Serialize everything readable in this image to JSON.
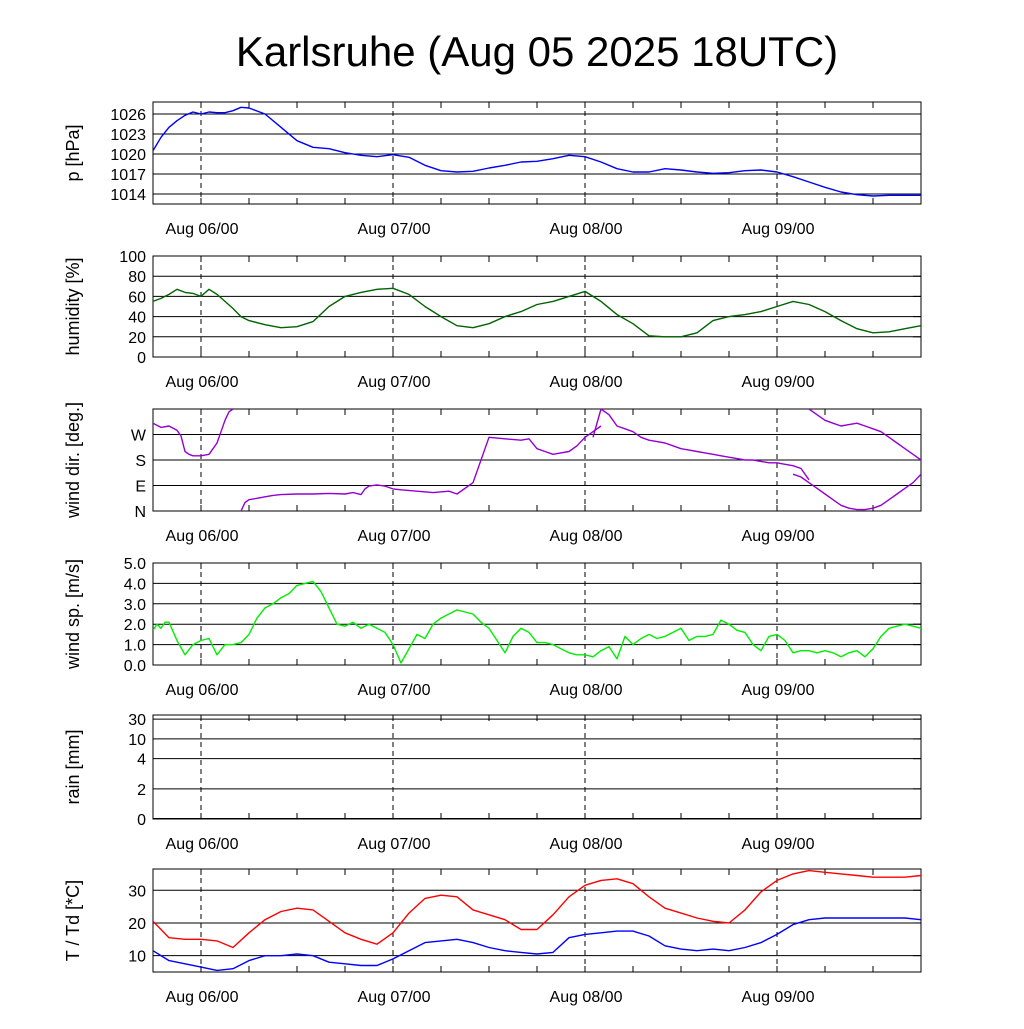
{
  "title": "Karlsruhe (Aug 05 2025 18UTC)",
  "x_tick_labels": [
    "Aug 06/00",
    "Aug 07/00",
    "Aug 08/00",
    "Aug 09/00"
  ],
  "chart_data": [
    {
      "type": "line",
      "ylabel": "p [hPa]",
      "yticks": [
        1014,
        1017,
        1020,
        1023,
        1026
      ],
      "ylim": [
        1012.5,
        1027.8
      ],
      "x_unit": "hours since Aug 05 18UTC",
      "xlim": [
        0,
        96
      ],
      "grid": "horizontal lines at y ticks, dashed verticals at day boundaries",
      "series": [
        {
          "color": "#0000ff",
          "x": [
            0,
            0.5,
            1,
            2,
            3,
            4,
            5,
            6,
            7,
            8,
            9,
            10,
            11,
            12,
            14,
            16,
            18,
            20,
            22,
            24,
            26,
            28,
            30,
            32,
            34,
            36,
            38,
            40,
            42,
            44,
            46,
            48,
            50,
            52,
            54,
            56,
            58,
            60,
            62,
            64,
            66,
            68,
            70,
            72,
            74,
            76,
            78,
            80,
            82,
            84,
            86,
            88,
            90,
            92,
            94,
            96
          ],
          "values": [
            1020.5,
            1021.5,
            1022.5,
            1024,
            1025,
            1025.8,
            1026.3,
            1026,
            1026.3,
            1026.2,
            1026.2,
            1026.5,
            1027,
            1026.9,
            1026,
            1024,
            1022,
            1021,
            1020.8,
            1020.2,
            1019.8,
            1019.6,
            1019.9,
            1019.5,
            1018.3,
            1017.5,
            1017.3,
            1017.4,
            1017.9,
            1018.3,
            1018.8,
            1018.9,
            1019.3,
            1019.8,
            1019.6,
            1018.8,
            1017.8,
            1017.3,
            1017.3,
            1017.8,
            1017.6,
            1017.3,
            1017.1,
            1017.2,
            1017.5,
            1017.6,
            1017.3,
            1016.6,
            1015.8,
            1015,
            1014.3,
            1013.9,
            1013.7,
            1013.8,
            1013.8,
            1013.8
          ]
        }
      ]
    },
    {
      "type": "line",
      "ylabel": "humidity [%]",
      "yticks": [
        0,
        20,
        40,
        60,
        80,
        100
      ],
      "ylim": [
        0,
        100
      ],
      "x_unit": "hours since Aug 05 18UTC",
      "xlim": [
        0,
        96
      ],
      "series": [
        {
          "color": "#006400",
          "x": [
            0,
            1,
            2,
            3,
            4,
            5,
            6,
            7,
            8,
            9,
            10,
            11,
            12,
            14,
            16,
            18,
            20,
            22,
            24,
            26,
            28,
            30,
            32,
            34,
            36,
            38,
            40,
            42,
            44,
            46,
            48,
            50,
            52,
            54,
            56,
            58,
            60,
            62,
            64,
            66,
            68,
            70,
            72,
            74,
            76,
            78,
            80,
            82,
            84,
            86,
            88,
            90,
            92,
            94,
            96
          ],
          "values": [
            55,
            58,
            62,
            67,
            64,
            63,
            60,
            67,
            62,
            55,
            48,
            40,
            36,
            32,
            29,
            30,
            35,
            50,
            60,
            64,
            67,
            68,
            62,
            50,
            40,
            31,
            29,
            33,
            40,
            45,
            52,
            55,
            60,
            65,
            55,
            42,
            33,
            21,
            20,
            20,
            24,
            36,
            40,
            42,
            45,
            50,
            55,
            52,
            45,
            36,
            28,
            24,
            25,
            28,
            31
          ]
        }
      ]
    },
    {
      "type": "scatter",
      "ylabel": "wind dir. [deg.]",
      "ytick_labels": [
        "N",
        "E",
        "S",
        "W"
      ],
      "yticks": [
        0,
        90,
        180,
        270
      ],
      "ylim": [
        0,
        360
      ],
      "x_unit": "hours since Aug 05 18UTC",
      "xlim": [
        0,
        96
      ],
      "series": [
        {
          "color": "#9400d3",
          "x": [
            0,
            1,
            2,
            3,
            3.5,
            4,
            4.5,
            5,
            6,
            7,
            8,
            8.5,
            9,
            9.5,
            10
          ],
          "values": [
            310,
            295,
            300,
            285,
            265,
            210,
            200,
            195,
            195,
            200,
            240,
            280,
            320,
            350,
            360
          ]
        },
        {
          "color": "#9400d3",
          "x": [
            11,
            11.5,
            12,
            13,
            14,
            15,
            16,
            18,
            20,
            22,
            24,
            25,
            26,
            26.5,
            27,
            28,
            29,
            30,
            31,
            33,
            35,
            37,
            38,
            40,
            42,
            44,
            46,
            47,
            48,
            49,
            50,
            52,
            53,
            54,
            55,
            56
          ],
          "values": [
            0,
            30,
            40,
            45,
            50,
            55,
            58,
            60,
            60,
            62,
            60,
            65,
            58,
            78,
            88,
            92,
            88,
            78,
            75,
            70,
            65,
            70,
            60,
            100,
            260,
            255,
            250,
            255,
            220,
            210,
            200,
            210,
            230,
            260,
            280,
            300
          ]
        },
        {
          "color": "#9400d3",
          "x": [
            55,
            56,
            57,
            58,
            59,
            60,
            61,
            62,
            63,
            64,
            65,
            66,
            67,
            68,
            69,
            70,
            71,
            72,
            73,
            74,
            75,
            76,
            77,
            78,
            79,
            80,
            81,
            82
          ],
          "values": [
            260,
            360,
            340,
            300,
            290,
            280,
            260,
            250,
            245,
            240,
            230,
            220,
            215,
            210,
            205,
            200,
            195,
            190,
            185,
            180,
            180,
            175,
            170,
            170,
            165,
            160,
            150,
            110
          ]
        },
        {
          "color": "#9400d3",
          "x": [
            80,
            81,
            82,
            83,
            84,
            85,
            86,
            87,
            88,
            89,
            90,
            91,
            92,
            93,
            94,
            95,
            96
          ],
          "values": [
            130,
            120,
            100,
            80,
            60,
            40,
            20,
            10,
            5,
            5,
            10,
            20,
            40,
            60,
            80,
            100,
            130
          ]
        },
        {
          "color": "#9400d3",
          "x": [
            82,
            83,
            84,
            85,
            86,
            87,
            88,
            89,
            90,
            91,
            92,
            93,
            94,
            95,
            96
          ],
          "values": [
            360,
            340,
            320,
            310,
            300,
            305,
            310,
            300,
            290,
            280,
            260,
            240,
            220,
            200,
            180
          ]
        }
      ]
    },
    {
      "type": "line",
      "ylabel": "wind sp. [m/s]",
      "yticks": [
        0.0,
        1.0,
        2.0,
        3.0,
        4.0,
        5.0
      ],
      "ytick_labels": [
        "0.0",
        "1.0",
        "2.0",
        "3.0",
        "4.0",
        "5.0"
      ],
      "ylim": [
        0,
        5
      ],
      "x_unit": "hours since Aug 05 18UTC",
      "xlim": [
        0,
        96
      ],
      "series": [
        {
          "color": "#00ee00",
          "x": [
            0,
            0.5,
            1,
            1.5,
            2,
            3,
            4,
            5,
            6,
            7,
            8,
            9,
            10,
            11,
            12,
            13,
            14,
            15,
            16,
            17,
            18,
            19,
            20,
            21,
            22,
            23,
            24,
            25,
            26,
            27,
            28,
            29,
            30,
            31,
            32,
            33,
            34,
            35,
            36,
            37,
            38,
            39,
            40,
            41,
            42,
            43,
            44,
            45,
            46,
            47,
            48,
            49,
            50,
            51,
            52,
            53,
            54,
            55,
            56,
            57,
            58,
            59,
            60,
            61,
            62,
            63,
            64,
            65,
            66,
            67,
            68,
            69,
            70,
            71,
            72,
            73,
            74,
            75,
            76,
            77,
            78,
            79,
            80,
            81,
            82,
            83,
            84,
            85,
            86,
            87,
            88,
            89,
            90,
            91,
            92,
            93,
            94,
            95,
            96
          ],
          "values": [
            1.7,
            2.0,
            1.8,
            2.1,
            2.1,
            1.2,
            0.5,
            1.0,
            1.2,
            1.3,
            0.5,
            1.0,
            1.0,
            1.1,
            1.5,
            2.3,
            2.8,
            3.0,
            3.3,
            3.5,
            3.9,
            4.0,
            4.1,
            3.6,
            2.8,
            2.0,
            1.9,
            2.1,
            1.8,
            2.0,
            1.8,
            1.6,
            1.0,
            0.1,
            0.8,
            1.5,
            1.3,
            2.0,
            2.3,
            2.5,
            2.7,
            2.6,
            2.5,
            2.1,
            1.8,
            1.2,
            0.6,
            1.4,
            1.8,
            1.6,
            1.1,
            1.1,
            1.0,
            0.8,
            0.6,
            0.5,
            0.5,
            0.4,
            0.7,
            0.9,
            0.3,
            1.4,
            1.0,
            1.3,
            1.5,
            1.3,
            1.4,
            1.6,
            1.8,
            1.2,
            1.4,
            1.4,
            1.5,
            2.2,
            2.0,
            1.7,
            1.6,
            1.0,
            0.7,
            1.4,
            1.5,
            1.2,
            0.6,
            0.7,
            0.7,
            0.6,
            0.7,
            0.6,
            0.4,
            0.6,
            0.7,
            0.4,
            0.8,
            1.4,
            1.8,
            1.9,
            2.0,
            1.9,
            1.8
          ]
        }
      ]
    },
    {
      "type": "line",
      "ylabel": "rain [mm]",
      "ytick_labels": [
        "0",
        "2",
        "4",
        "10",
        "30"
      ],
      "ylim": [
        0,
        30
      ],
      "note": "non-linear axis, no precipitation",
      "x_unit": "hours since Aug 05 18UTC",
      "xlim": [
        0,
        96
      ],
      "series": [
        {
          "color": "#000000",
          "x": [
            0,
            96
          ],
          "values": [
            0,
            0
          ]
        }
      ]
    },
    {
      "type": "line",
      "ylabel": "T / Td [*C]",
      "yticks": [
        10,
        20,
        30
      ],
      "ylim": [
        5,
        36.5
      ],
      "x_unit": "hours since Aug 05 18UTC",
      "xlim": [
        0,
        96
      ],
      "series": [
        {
          "color": "#ff0000",
          "x": [
            0,
            2,
            4,
            6,
            8,
            10,
            12,
            14,
            16,
            18,
            20,
            22,
            24,
            26,
            28,
            30,
            32,
            34,
            36,
            38,
            40,
            42,
            44,
            46,
            48,
            50,
            52,
            54,
            56,
            58,
            60,
            62,
            64,
            66,
            68,
            70,
            72,
            74,
            76,
            78,
            80,
            82,
            84,
            86,
            88,
            90,
            92,
            94,
            96
          ],
          "values": [
            20.5,
            15.5,
            15,
            15,
            14.5,
            12.5,
            17,
            21,
            23.5,
            24.5,
            24,
            20.5,
            17,
            15,
            13.5,
            17,
            23,
            27.5,
            28.5,
            28,
            24,
            22.5,
            21,
            18,
            18,
            22.5,
            28,
            31.5,
            33,
            33.5,
            32,
            28,
            24.5,
            23,
            21.5,
            20.5,
            20,
            24,
            29.5,
            33,
            35,
            36,
            35.5,
            35,
            34.5,
            34,
            34,
            34,
            34.5
          ]
        },
        {
          "color": "#0000ff",
          "x": [
            0,
            2,
            4,
            6,
            8,
            10,
            12,
            14,
            16,
            18,
            20,
            22,
            24,
            26,
            28,
            30,
            32,
            34,
            36,
            38,
            40,
            42,
            44,
            46,
            48,
            50,
            52,
            54,
            56,
            58,
            60,
            62,
            64,
            66,
            68,
            70,
            72,
            74,
            76,
            78,
            80,
            82,
            84,
            86,
            88,
            90,
            92,
            94,
            96
          ],
          "values": [
            11.5,
            8.5,
            7.5,
            6.5,
            5.5,
            6,
            8.5,
            10,
            10,
            10.5,
            10,
            8,
            7.5,
            7,
            7,
            9,
            11.5,
            14,
            14.5,
            15,
            14,
            12.5,
            11.5,
            11,
            10.5,
            11,
            15.5,
            16.5,
            17,
            17.5,
            17.5,
            16,
            13,
            12,
            11.5,
            12,
            11.5,
            12.5,
            14,
            16.5,
            19.5,
            21,
            21.5,
            21.5,
            21.5,
            21.5,
            21.5,
            21.5,
            21
          ]
        }
      ]
    }
  ]
}
